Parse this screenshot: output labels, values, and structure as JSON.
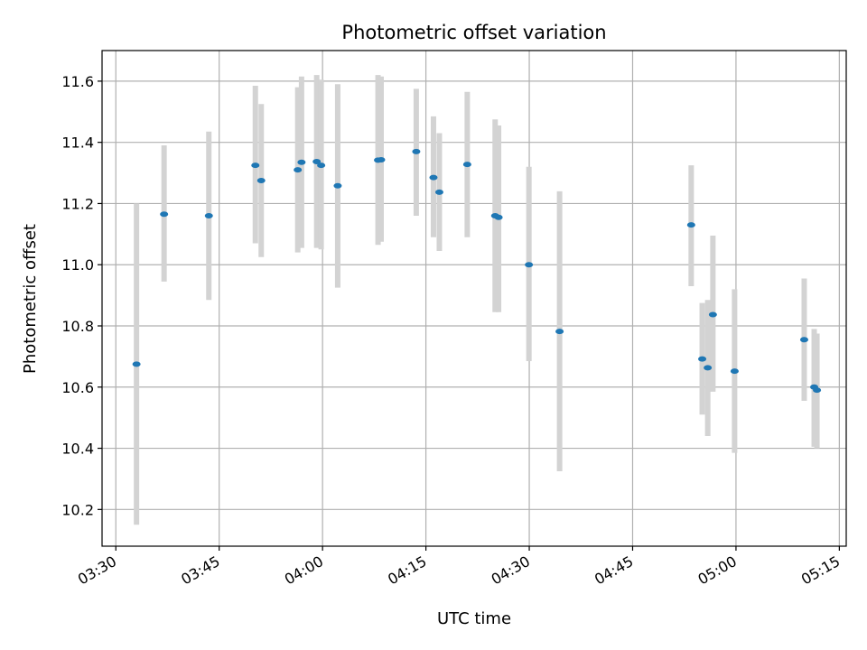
{
  "chart_data": {
    "type": "scatter",
    "title": "Photometric offset variation",
    "xlabel": "UTC time",
    "ylabel": "Photometric offset",
    "x_ticks": [
      "03:30",
      "03:45",
      "04:00",
      "04:15",
      "04:30",
      "04:45",
      "05:00",
      "05:15"
    ],
    "y_ticks": [
      "10.2",
      "10.4",
      "10.6",
      "10.8",
      "11.0",
      "11.2",
      "11.4",
      "11.6"
    ],
    "xlim": [
      "03:28",
      "05:16"
    ],
    "ylim": [
      10.08,
      11.7
    ],
    "grid": true,
    "marker_color": "#1f77b4",
    "errorbar_color": "#d3d3d3",
    "points": [
      {
        "x": "03:33",
        "y": 10.675,
        "ylow": 10.15,
        "yhigh": 11.2
      },
      {
        "x": "03:37",
        "y": 11.165,
        "ylow": 10.945,
        "yhigh": 11.39
      },
      {
        "x": "03:43.5",
        "y": 11.16,
        "ylow": 10.885,
        "yhigh": 11.435
      },
      {
        "x": "03:50.25",
        "y": 11.325,
        "ylow": 11.07,
        "yhigh": 11.585
      },
      {
        "x": "03:51.1",
        "y": 11.275,
        "ylow": 11.025,
        "yhigh": 11.525
      },
      {
        "x": "03:56.4",
        "y": 11.31,
        "ylow": 11.04,
        "yhigh": 11.58
      },
      {
        "x": "03:56.95",
        "y": 11.335,
        "ylow": 11.055,
        "yhigh": 11.615
      },
      {
        "x": "03:59.15",
        "y": 11.337,
        "ylow": 11.055,
        "yhigh": 11.62
      },
      {
        "x": "03:59.8",
        "y": 11.325,
        "ylow": 11.05,
        "yhigh": 11.605
      },
      {
        "x": "04:02.2",
        "y": 11.258,
        "ylow": 10.925,
        "yhigh": 11.59
      },
      {
        "x": "04:08.05",
        "y": 11.342,
        "ylow": 11.065,
        "yhigh": 11.62
      },
      {
        "x": "04:08.5",
        "y": 11.343,
        "ylow": 11.075,
        "yhigh": 11.615
      },
      {
        "x": "04:13.6",
        "y": 11.37,
        "ylow": 11.16,
        "yhigh": 11.575
      },
      {
        "x": "04:16.1",
        "y": 11.285,
        "ylow": 11.09,
        "yhigh": 11.485
      },
      {
        "x": "04:16.95",
        "y": 11.237,
        "ylow": 11.045,
        "yhigh": 11.43
      },
      {
        "x": "04:21",
        "y": 11.328,
        "ylow": 11.09,
        "yhigh": 11.565
      },
      {
        "x": "04:25.05",
        "y": 11.16,
        "ylow": 10.845,
        "yhigh": 11.475
      },
      {
        "x": "04:25.55",
        "y": 11.155,
        "ylow": 10.845,
        "yhigh": 11.455
      },
      {
        "x": "04:29.95",
        "y": 11.0,
        "ylow": 10.685,
        "yhigh": 11.32
      },
      {
        "x": "04:34.4",
        "y": 10.782,
        "ylow": 10.325,
        "yhigh": 11.24
      },
      {
        "x": "04:53.5",
        "y": 11.13,
        "ylow": 10.93,
        "yhigh": 11.325
      },
      {
        "x": "04:55.1",
        "y": 10.692,
        "ylow": 10.51,
        "yhigh": 10.875
      },
      {
        "x": "04:55.9",
        "y": 10.663,
        "ylow": 10.44,
        "yhigh": 10.885
      },
      {
        "x": "04:56.65",
        "y": 10.837,
        "ylow": 10.585,
        "yhigh": 11.095
      },
      {
        "x": "04:59.8",
        "y": 10.652,
        "ylow": 10.385,
        "yhigh": 10.92
      },
      {
        "x": "05:09.9",
        "y": 10.755,
        "ylow": 10.555,
        "yhigh": 10.955
      },
      {
        "x": "05:11.35",
        "y": 10.6,
        "ylow": 10.405,
        "yhigh": 10.79
      },
      {
        "x": "05:11.75",
        "y": 10.59,
        "ylow": 10.4,
        "yhigh": 10.775
      }
    ]
  }
}
